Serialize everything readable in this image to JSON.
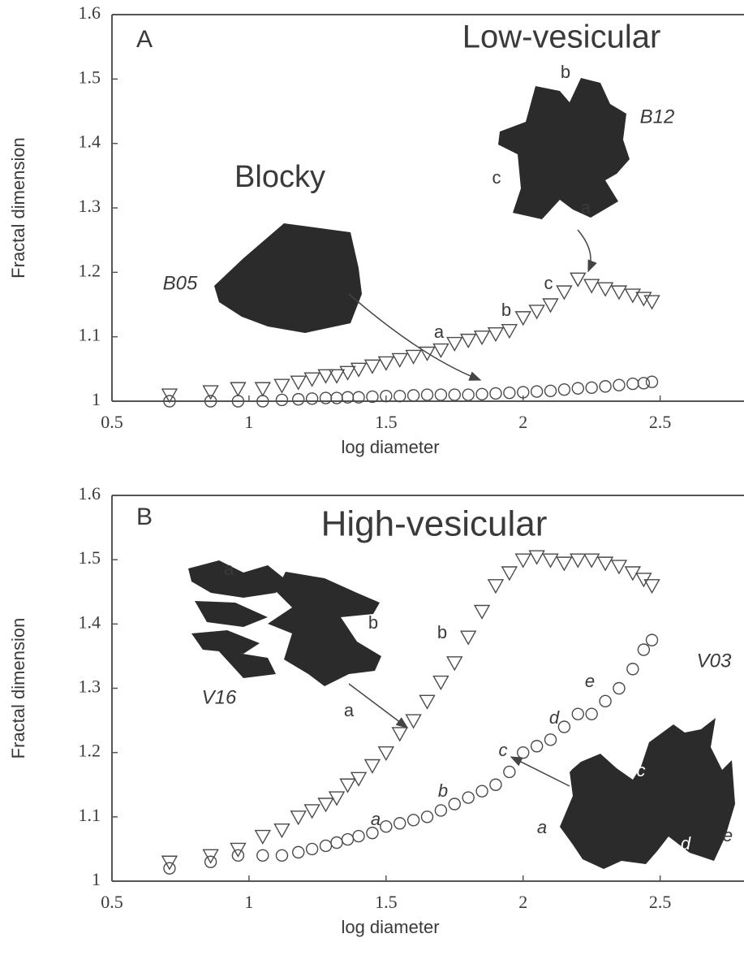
{
  "chart_data": [
    {
      "type": "scatter",
      "xlabel": "log diameter",
      "ylabel": "Fractal dimension",
      "xlim": [
        0.5,
        2.8
      ],
      "ylim": [
        1,
        1.6
      ],
      "xticks": [
        0.5,
        1,
        1.5,
        2,
        2.5
      ],
      "yticks": [
        1,
        1.1,
        1.2,
        1.3,
        1.4,
        1.5,
        1.6
      ],
      "x": [
        0.71,
        0.86,
        0.96,
        1.05,
        1.12,
        1.18,
        1.23,
        1.28,
        1.32,
        1.36,
        1.4,
        1.45,
        1.5,
        1.55,
        1.6,
        1.65,
        1.7,
        1.75,
        1.8,
        1.85,
        1.9,
        1.95,
        2.0,
        2.05,
        2.1,
        2.15,
        2.2,
        2.25,
        2.3,
        2.35,
        2.4,
        2.44,
        2.47
      ],
      "series": [
        {
          "name": "B12",
          "marker": "triangle-down",
          "color": "#4a4a4a",
          "values": [
            1.01,
            1.015,
            1.02,
            1.02,
            1.025,
            1.03,
            1.035,
            1.04,
            1.04,
            1.045,
            1.05,
            1.055,
            1.06,
            1.065,
            1.07,
            1.075,
            1.08,
            1.09,
            1.095,
            1.1,
            1.105,
            1.11,
            1.13,
            1.14,
            1.15,
            1.17,
            1.19,
            1.18,
            1.175,
            1.17,
            1.165,
            1.16,
            1.155
          ]
        },
        {
          "name": "B05",
          "marker": "circle",
          "color": "#4a4a4a",
          "values": [
            1.0,
            1.0,
            1.0,
            1.0,
            1.002,
            1.003,
            1.004,
            1.005,
            1.005,
            1.006,
            1.006,
            1.007,
            1.008,
            1.008,
            1.009,
            1.01,
            1.01,
            1.01,
            1.01,
            1.011,
            1.012,
            1.013,
            1.014,
            1.015,
            1.016,
            1.018,
            1.02,
            1.021,
            1.023,
            1.025,
            1.027,
            1.028,
            1.03
          ]
        }
      ],
      "annotations": [
        "A",
        "Low-vesicular",
        "Blocky",
        "b",
        "c",
        "a",
        "a",
        "b",
        "c"
      ]
    },
    {
      "type": "scatter",
      "xlabel": "log diameter",
      "ylabel": "Fractal dimension",
      "xlim": [
        0.5,
        2.8
      ],
      "ylim": [
        1,
        1.6
      ],
      "xticks": [
        0.5,
        1,
        1.5,
        2,
        2.5
      ],
      "yticks": [
        1,
        1.1,
        1.2,
        1.3,
        1.4,
        1.5,
        1.6
      ],
      "x": [
        0.71,
        0.86,
        0.96,
        1.05,
        1.12,
        1.18,
        1.23,
        1.28,
        1.32,
        1.36,
        1.4,
        1.45,
        1.5,
        1.55,
        1.6,
        1.65,
        1.7,
        1.75,
        1.8,
        1.85,
        1.9,
        1.95,
        2.0,
        2.05,
        2.1,
        2.15,
        2.2,
        2.25,
        2.3,
        2.35,
        2.4,
        2.44,
        2.47
      ],
      "series": [
        {
          "name": "V16",
          "marker": "triangle-down",
          "color": "#4a4a4a",
          "values": [
            1.03,
            1.04,
            1.05,
            1.07,
            1.08,
            1.1,
            1.11,
            1.12,
            1.13,
            1.15,
            1.16,
            1.18,
            1.2,
            1.23,
            1.25,
            1.28,
            1.31,
            1.34,
            1.38,
            1.42,
            1.46,
            1.48,
            1.5,
            1.505,
            1.5,
            1.495,
            1.5,
            1.5,
            1.495,
            1.49,
            1.48,
            1.47,
            1.46
          ]
        },
        {
          "name": "V03",
          "marker": "circle",
          "color": "#4a4a4a",
          "values": [
            1.02,
            1.03,
            1.04,
            1.04,
            1.04,
            1.045,
            1.05,
            1.055,
            1.06,
            1.065,
            1.07,
            1.075,
            1.085,
            1.09,
            1.095,
            1.1,
            1.11,
            1.12,
            1.13,
            1.14,
            1.15,
            1.17,
            1.2,
            1.21,
            1.22,
            1.24,
            1.26,
            1.26,
            1.28,
            1.3,
            1.33,
            1.36,
            1.375
          ]
        }
      ],
      "annotations": [
        "B",
        "High-vesicular",
        "a",
        "b",
        "a",
        "b",
        "a",
        "b",
        "c",
        "d",
        "e",
        "b",
        "c",
        "a",
        "d",
        "e"
      ]
    }
  ]
}
